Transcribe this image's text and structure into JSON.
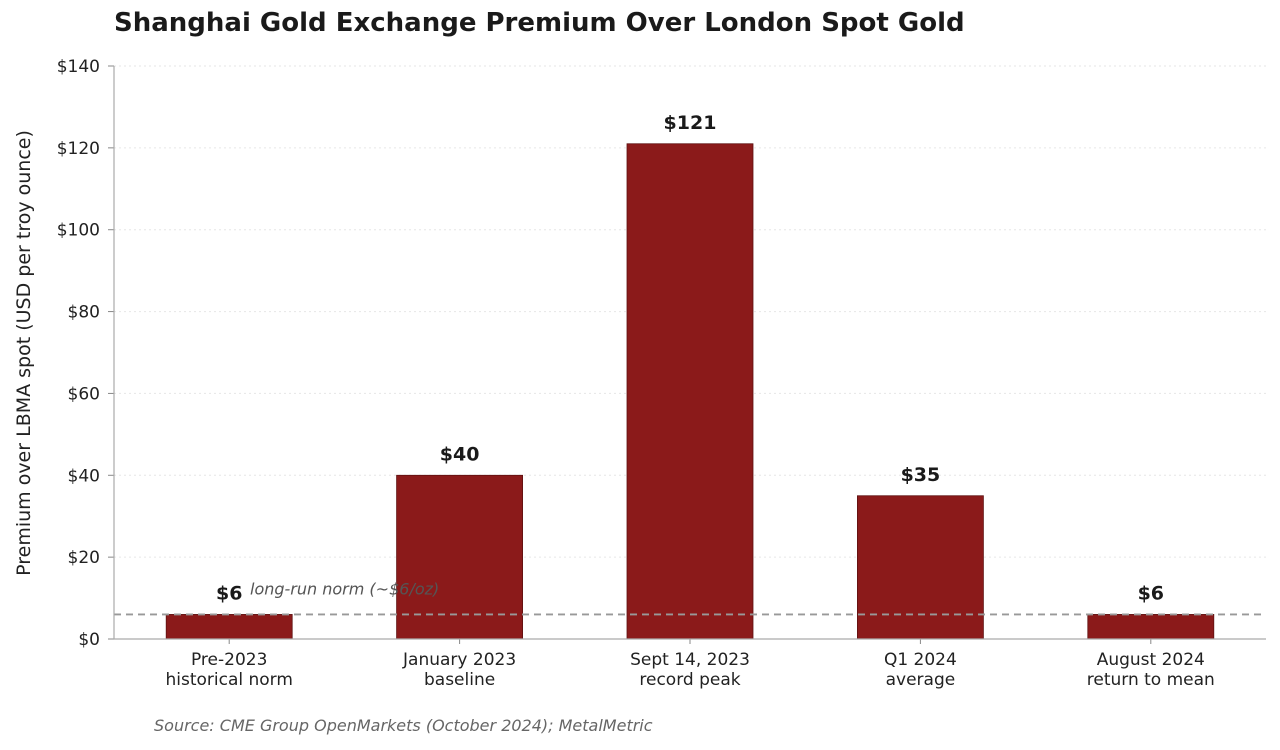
{
  "chart_data": {
    "type": "bar",
    "title": "Shanghai Gold Exchange Premium Over London Spot Gold",
    "ylabel": "Premium over LBMA spot (USD per troy ounce)",
    "xlabel": "",
    "categories": [
      [
        "Pre-2023",
        "historical norm"
      ],
      [
        "January 2023",
        "baseline"
      ],
      [
        "Sept 14, 2023",
        "record peak"
      ],
      [
        "Q1 2024",
        "average"
      ],
      [
        "August 2024",
        "return to mean"
      ]
    ],
    "values": [
      6,
      40,
      121,
      35,
      6
    ],
    "data_labels": [
      "$6",
      "$40",
      "$121",
      "$35",
      "$6"
    ],
    "ylim": [
      0,
      140
    ],
    "yticks": [
      0,
      20,
      40,
      60,
      80,
      100,
      120,
      140
    ],
    "ytick_labels": [
      "$0",
      "$20",
      "$40",
      "$60",
      "$80",
      "$100",
      "$120",
      "$140"
    ],
    "reference_line": {
      "value": 6,
      "label": "long-run norm (~$6/oz)",
      "color": "#999999"
    },
    "bar_color": "#8b1a1a",
    "grid": true,
    "source": "Source: CME Group OpenMarkets (October 2024); MetalMetric"
  }
}
